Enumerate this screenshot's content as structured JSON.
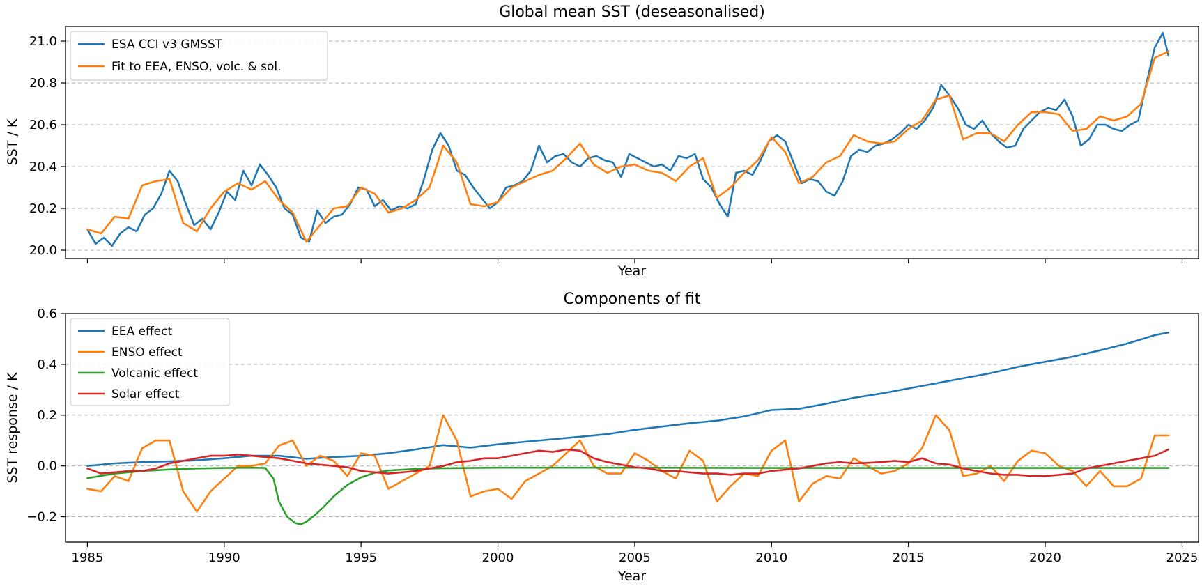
{
  "chart_data": [
    {
      "type": "line",
      "title": "Global mean SST (deseasonalised)",
      "xlabel": "Year",
      "ylabel": "SST / K",
      "xlim": [
        1984.2,
        2025.6
      ],
      "ylim": [
        19.96,
        21.07
      ],
      "xticks": [
        1985,
        1990,
        1995,
        2000,
        2005,
        2010,
        2015,
        2020,
        2025
      ],
      "yticks": [
        20.0,
        20.2,
        20.4,
        20.6,
        20.8,
        21.0
      ],
      "ytick_labels": [
        "20.0",
        "20.2",
        "20.4",
        "20.6",
        "20.8",
        "21.0"
      ],
      "show_xtick_labels": false,
      "grid": "horizontal-dashed",
      "legend": "top-left",
      "series": [
        {
          "name": "ESA CCI v3 GMSST",
          "color": "#1f77b4",
          "x": [
            1985.0,
            1985.3,
            1985.6,
            1985.9,
            1986.2,
            1986.5,
            1986.8,
            1987.1,
            1987.4,
            1987.7,
            1988.0,
            1988.3,
            1988.6,
            1988.9,
            1989.2,
            1989.5,
            1989.8,
            1990.1,
            1990.4,
            1990.7,
            1991.0,
            1991.3,
            1991.6,
            1991.9,
            1992.2,
            1992.5,
            1992.8,
            1993.1,
            1993.4,
            1993.7,
            1994.0,
            1994.3,
            1994.6,
            1994.9,
            1995.2,
            1995.5,
            1995.8,
            1996.1,
            1996.4,
            1996.7,
            1997.0,
            1997.3,
            1997.6,
            1997.9,
            1998.2,
            1998.5,
            1998.8,
            1999.1,
            1999.4,
            1999.7,
            2000.0,
            2000.3,
            2000.6,
            2000.9,
            2001.2,
            2001.5,
            2001.8,
            2002.1,
            2002.4,
            2002.7,
            2003.0,
            2003.3,
            2003.6,
            2003.9,
            2004.2,
            2004.5,
            2004.8,
            2005.1,
            2005.4,
            2005.7,
            2006.0,
            2006.3,
            2006.6,
            2006.9,
            2007.2,
            2007.5,
            2007.8,
            2008.1,
            2008.4,
            2008.7,
            2009.0,
            2009.3,
            2009.6,
            2009.9,
            2010.2,
            2010.5,
            2010.8,
            2011.1,
            2011.4,
            2011.7,
            2012.0,
            2012.3,
            2012.6,
            2012.9,
            2013.2,
            2013.5,
            2013.8,
            2014.1,
            2014.4,
            2014.7,
            2015.0,
            2015.3,
            2015.6,
            2015.9,
            2016.2,
            2016.5,
            2016.8,
            2017.1,
            2017.4,
            2017.7,
            2018.0,
            2018.3,
            2018.6,
            2018.9,
            2019.2,
            2019.5,
            2019.8,
            2020.1,
            2020.4,
            2020.7,
            2021.0,
            2021.3,
            2021.6,
            2021.9,
            2022.2,
            2022.5,
            2022.8,
            2023.1,
            2023.4,
            2023.7,
            2024.0,
            2024.3,
            2024.5
          ],
          "y": [
            20.1,
            20.03,
            20.06,
            20.02,
            20.08,
            20.11,
            20.09,
            20.17,
            20.2,
            20.27,
            20.38,
            20.33,
            20.22,
            20.12,
            20.15,
            20.1,
            20.18,
            20.28,
            20.24,
            20.38,
            20.31,
            20.41,
            20.36,
            20.3,
            20.2,
            20.17,
            20.06,
            20.04,
            20.19,
            20.13,
            20.16,
            20.17,
            20.22,
            20.3,
            20.29,
            20.21,
            20.24,
            20.19,
            20.21,
            20.2,
            20.22,
            20.34,
            20.48,
            20.56,
            20.5,
            20.38,
            20.36,
            20.3,
            20.25,
            20.2,
            20.23,
            20.3,
            20.31,
            20.33,
            20.38,
            20.5,
            20.42,
            20.45,
            20.46,
            20.42,
            20.4,
            20.44,
            20.45,
            20.43,
            20.42,
            20.35,
            20.46,
            20.44,
            20.42,
            20.4,
            20.41,
            20.38,
            20.45,
            20.44,
            20.46,
            20.34,
            20.3,
            20.22,
            20.16,
            20.37,
            20.38,
            20.36,
            20.43,
            20.52,
            20.55,
            20.52,
            20.42,
            20.32,
            20.34,
            20.33,
            20.28,
            20.26,
            20.33,
            20.45,
            20.48,
            20.47,
            20.5,
            20.51,
            20.53,
            20.56,
            20.6,
            20.58,
            20.62,
            20.68,
            20.79,
            20.74,
            20.68,
            20.6,
            20.58,
            20.62,
            20.56,
            20.52,
            20.49,
            20.5,
            20.58,
            20.62,
            20.66,
            20.68,
            20.67,
            20.72,
            20.64,
            20.5,
            20.53,
            20.6,
            20.6,
            20.58,
            20.57,
            20.6,
            20.62,
            20.8,
            20.97,
            21.04,
            20.93
          ]
        },
        {
          "name": "Fit to EEA, ENSO, volc. & sol.",
          "color": "#ff7f0e",
          "x": [
            1985.0,
            1985.5,
            1986.0,
            1986.5,
            1987.0,
            1987.5,
            1988.0,
            1988.5,
            1989.0,
            1989.5,
            1990.0,
            1990.5,
            1991.0,
            1991.5,
            1992.0,
            1992.5,
            1993.0,
            1993.5,
            1994.0,
            1994.5,
            1995.0,
            1995.5,
            1996.0,
            1996.5,
            1997.0,
            1997.5,
            1998.0,
            1998.5,
            1999.0,
            1999.5,
            2000.0,
            2000.5,
            2001.0,
            2001.5,
            2002.0,
            2002.5,
            2003.0,
            2003.5,
            2004.0,
            2004.5,
            2005.0,
            2005.5,
            2006.0,
            2006.5,
            2007.0,
            2007.5,
            2008.0,
            2008.5,
            2009.0,
            2009.5,
            2010.0,
            2010.5,
            2011.0,
            2011.5,
            2012.0,
            2012.5,
            2013.0,
            2013.5,
            2014.0,
            2014.5,
            2015.0,
            2015.5,
            2016.0,
            2016.5,
            2017.0,
            2017.5,
            2018.0,
            2018.5,
            2019.0,
            2019.5,
            2020.0,
            2020.5,
            2021.0,
            2021.5,
            2022.0,
            2022.5,
            2023.0,
            2023.5,
            2024.0,
            2024.5
          ],
          "y": [
            20.1,
            20.08,
            20.16,
            20.15,
            20.31,
            20.33,
            20.34,
            20.13,
            20.09,
            20.2,
            20.28,
            20.32,
            20.29,
            20.33,
            20.24,
            20.18,
            20.04,
            20.12,
            20.2,
            20.21,
            20.3,
            20.27,
            20.18,
            20.2,
            20.24,
            20.3,
            20.5,
            20.42,
            20.22,
            20.21,
            20.23,
            20.3,
            20.33,
            20.36,
            20.38,
            20.44,
            20.51,
            20.41,
            20.37,
            20.4,
            20.41,
            20.38,
            20.37,
            20.33,
            20.4,
            20.44,
            20.25,
            20.3,
            20.37,
            20.43,
            20.54,
            20.47,
            20.32,
            20.35,
            20.42,
            20.45,
            20.55,
            20.52,
            20.51,
            20.52,
            20.58,
            20.62,
            20.72,
            20.74,
            20.53,
            20.56,
            20.56,
            20.52,
            20.6,
            20.66,
            20.66,
            20.65,
            20.57,
            20.58,
            20.64,
            20.62,
            20.64,
            20.7,
            20.92,
            20.95
          ]
        }
      ]
    },
    {
      "type": "line",
      "title": "Components of fit",
      "xlabel": "Year",
      "ylabel": "SST response / K",
      "xlim": [
        1984.2,
        2025.6
      ],
      "ylim": [
        -0.3,
        0.6
      ],
      "xticks": [
        1985,
        1990,
        1995,
        2000,
        2005,
        2010,
        2015,
        2020,
        2025
      ],
      "xtick_labels": [
        "1985",
        "1990",
        "1995",
        "2000",
        "2005",
        "2010",
        "2015",
        "2020",
        "2025"
      ],
      "yticks": [
        -0.2,
        0.0,
        0.2,
        0.4,
        0.6
      ],
      "ytick_labels": [
        "−0.2",
        "0.0",
        "0.2",
        "0.4",
        "0.6"
      ],
      "grid": "horizontal-dashed",
      "legend": "top-left",
      "series": [
        {
          "name": "EEA effect",
          "color": "#1f77b4",
          "x": [
            1985,
            1986,
            1987,
            1988,
            1989,
            1990,
            1991,
            1992,
            1993,
            1994,
            1995,
            1996,
            1997,
            1998,
            1999,
            2000,
            2001,
            2002,
            2003,
            2004,
            2005,
            2006,
            2007,
            2008,
            2009,
            2010,
            2011,
            2012,
            2013,
            2014,
            2015,
            2016,
            2017,
            2018,
            2019,
            2020,
            2021,
            2022,
            2023,
            2024,
            2024.5
          ],
          "y": [
            0.0,
            0.01,
            0.015,
            0.018,
            0.022,
            0.03,
            0.04,
            0.04,
            0.028,
            0.035,
            0.04,
            0.05,
            0.065,
            0.082,
            0.072,
            0.085,
            0.095,
            0.105,
            0.115,
            0.125,
            0.142,
            0.155,
            0.168,
            0.178,
            0.195,
            0.22,
            0.225,
            0.245,
            0.268,
            0.285,
            0.305,
            0.325,
            0.345,
            0.365,
            0.39,
            0.41,
            0.43,
            0.455,
            0.482,
            0.515,
            0.525
          ]
        },
        {
          "name": "ENSO effect",
          "color": "#ff7f0e",
          "x": [
            1985.0,
            1985.5,
            1986.0,
            1986.5,
            1987.0,
            1987.5,
            1988.0,
            1988.5,
            1989.0,
            1989.5,
            1990.0,
            1990.5,
            1991.0,
            1991.5,
            1992.0,
            1992.5,
            1993.0,
            1993.5,
            1994.0,
            1994.5,
            1995.0,
            1995.5,
            1996.0,
            1996.5,
            1997.0,
            1997.5,
            1998.0,
            1998.5,
            1999.0,
            1999.5,
            2000.0,
            2000.5,
            2001.0,
            2001.5,
            2002.0,
            2002.5,
            2003.0,
            2003.5,
            2004.0,
            2004.5,
            2005.0,
            2005.5,
            2006.0,
            2006.5,
            2007.0,
            2007.5,
            2008.0,
            2008.5,
            2009.0,
            2009.5,
            2010.0,
            2010.5,
            2011.0,
            2011.5,
            2012.0,
            2012.5,
            2013.0,
            2013.5,
            2014.0,
            2014.5,
            2015.0,
            2015.5,
            2016.0,
            2016.5,
            2017.0,
            2017.5,
            2018.0,
            2018.5,
            2019.0,
            2019.5,
            2020.0,
            2020.5,
            2021.0,
            2021.5,
            2022.0,
            2022.5,
            2023.0,
            2023.5,
            2024.0,
            2024.5
          ],
          "y": [
            -0.09,
            -0.1,
            -0.04,
            -0.06,
            0.07,
            0.1,
            0.1,
            -0.1,
            -0.18,
            -0.1,
            -0.05,
            0.0,
            0.0,
            0.01,
            0.08,
            0.1,
            0.0,
            0.04,
            0.02,
            -0.04,
            0.05,
            0.04,
            -0.09,
            -0.06,
            -0.03,
            0.0,
            0.2,
            0.1,
            -0.12,
            -0.1,
            -0.09,
            -0.13,
            -0.06,
            -0.03,
            0.0,
            0.05,
            0.1,
            0.0,
            -0.03,
            -0.03,
            0.05,
            0.02,
            -0.02,
            -0.05,
            0.06,
            0.02,
            -0.14,
            -0.08,
            -0.03,
            -0.04,
            0.06,
            0.1,
            -0.14,
            -0.07,
            -0.04,
            -0.05,
            0.03,
            0.0,
            -0.03,
            -0.02,
            0.01,
            0.07,
            0.2,
            0.14,
            -0.04,
            -0.03,
            0.0,
            -0.06,
            0.02,
            0.06,
            0.05,
            0.0,
            -0.02,
            -0.08,
            -0.02,
            -0.08,
            -0.08,
            -0.05,
            0.12,
            0.12
          ]
        },
        {
          "name": "Volcanic effect",
          "color": "#2ca02c",
          "x": [
            1985,
            1986,
            1987,
            1988,
            1989,
            1990,
            1991,
            1991.5,
            1991.8,
            1992.0,
            1992.3,
            1992.6,
            1992.8,
            1993.0,
            1993.3,
            1993.6,
            1994.0,
            1994.5,
            1995.0,
            1995.5,
            1996.0,
            1997,
            1998,
            1999,
            2000,
            2005,
            2010,
            2015,
            2020,
            2024.5
          ],
          "y": [
            -0.048,
            -0.03,
            -0.02,
            -0.014,
            -0.01,
            -0.008,
            -0.007,
            -0.008,
            -0.05,
            -0.14,
            -0.2,
            -0.225,
            -0.23,
            -0.22,
            -0.195,
            -0.165,
            -0.12,
            -0.075,
            -0.045,
            -0.027,
            -0.018,
            -0.012,
            -0.009,
            -0.008,
            -0.007,
            -0.007,
            -0.008,
            -0.008,
            -0.008,
            -0.008
          ]
        },
        {
          "name": "Solar effect",
          "color": "#d62728",
          "x": [
            1985.0,
            1985.5,
            1986.0,
            1986.5,
            1987.0,
            1987.5,
            1988.0,
            1988.5,
            1989.0,
            1989.5,
            1990.0,
            1990.5,
            1991.0,
            1991.5,
            1992.0,
            1992.5,
            1993.0,
            1993.5,
            1994.0,
            1994.5,
            1995.0,
            1995.5,
            1996.0,
            1996.5,
            1997.0,
            1997.5,
            1998.0,
            1998.5,
            1999.0,
            1999.5,
            2000.0,
            2000.5,
            2001.0,
            2001.5,
            2002.0,
            2002.5,
            2003.0,
            2003.5,
            2004.0,
            2004.5,
            2005.0,
            2005.5,
            2006.0,
            2006.5,
            2007.0,
            2007.5,
            2008.0,
            2008.5,
            2009.0,
            2009.5,
            2010.0,
            2010.5,
            2011.0,
            2011.5,
            2012.0,
            2012.5,
            2013.0,
            2013.5,
            2014.0,
            2014.5,
            2015.0,
            2015.5,
            2016.0,
            2016.5,
            2017.0,
            2017.5,
            2018.0,
            2018.5,
            2019.0,
            2019.5,
            2020.0,
            2020.5,
            2021.0,
            2021.5,
            2022.0,
            2022.5,
            2023.0,
            2023.5,
            2024.0,
            2024.5
          ],
          "y": [
            -0.01,
            -0.03,
            -0.025,
            -0.02,
            -0.02,
            -0.01,
            0.01,
            0.02,
            0.03,
            0.04,
            0.04,
            0.045,
            0.04,
            0.035,
            0.03,
            0.02,
            0.01,
            0.005,
            0.0,
            -0.005,
            -0.02,
            -0.025,
            -0.03,
            -0.025,
            -0.02,
            -0.01,
            0.0,
            0.015,
            0.02,
            0.03,
            0.03,
            0.04,
            0.05,
            0.06,
            0.055,
            0.065,
            0.06,
            0.03,
            0.015,
            0.005,
            -0.005,
            -0.01,
            -0.02,
            -0.02,
            -0.025,
            -0.03,
            -0.03,
            -0.035,
            -0.03,
            -0.03,
            -0.02,
            -0.015,
            -0.01,
            0.0,
            0.01,
            0.015,
            0.01,
            0.012,
            0.015,
            0.02,
            0.015,
            0.03,
            0.01,
            0.005,
            -0.01,
            -0.02,
            -0.03,
            -0.035,
            -0.035,
            -0.04,
            -0.04,
            -0.035,
            -0.03,
            -0.01,
            0.0,
            0.01,
            0.02,
            0.03,
            0.04,
            0.065
          ]
        }
      ]
    }
  ]
}
